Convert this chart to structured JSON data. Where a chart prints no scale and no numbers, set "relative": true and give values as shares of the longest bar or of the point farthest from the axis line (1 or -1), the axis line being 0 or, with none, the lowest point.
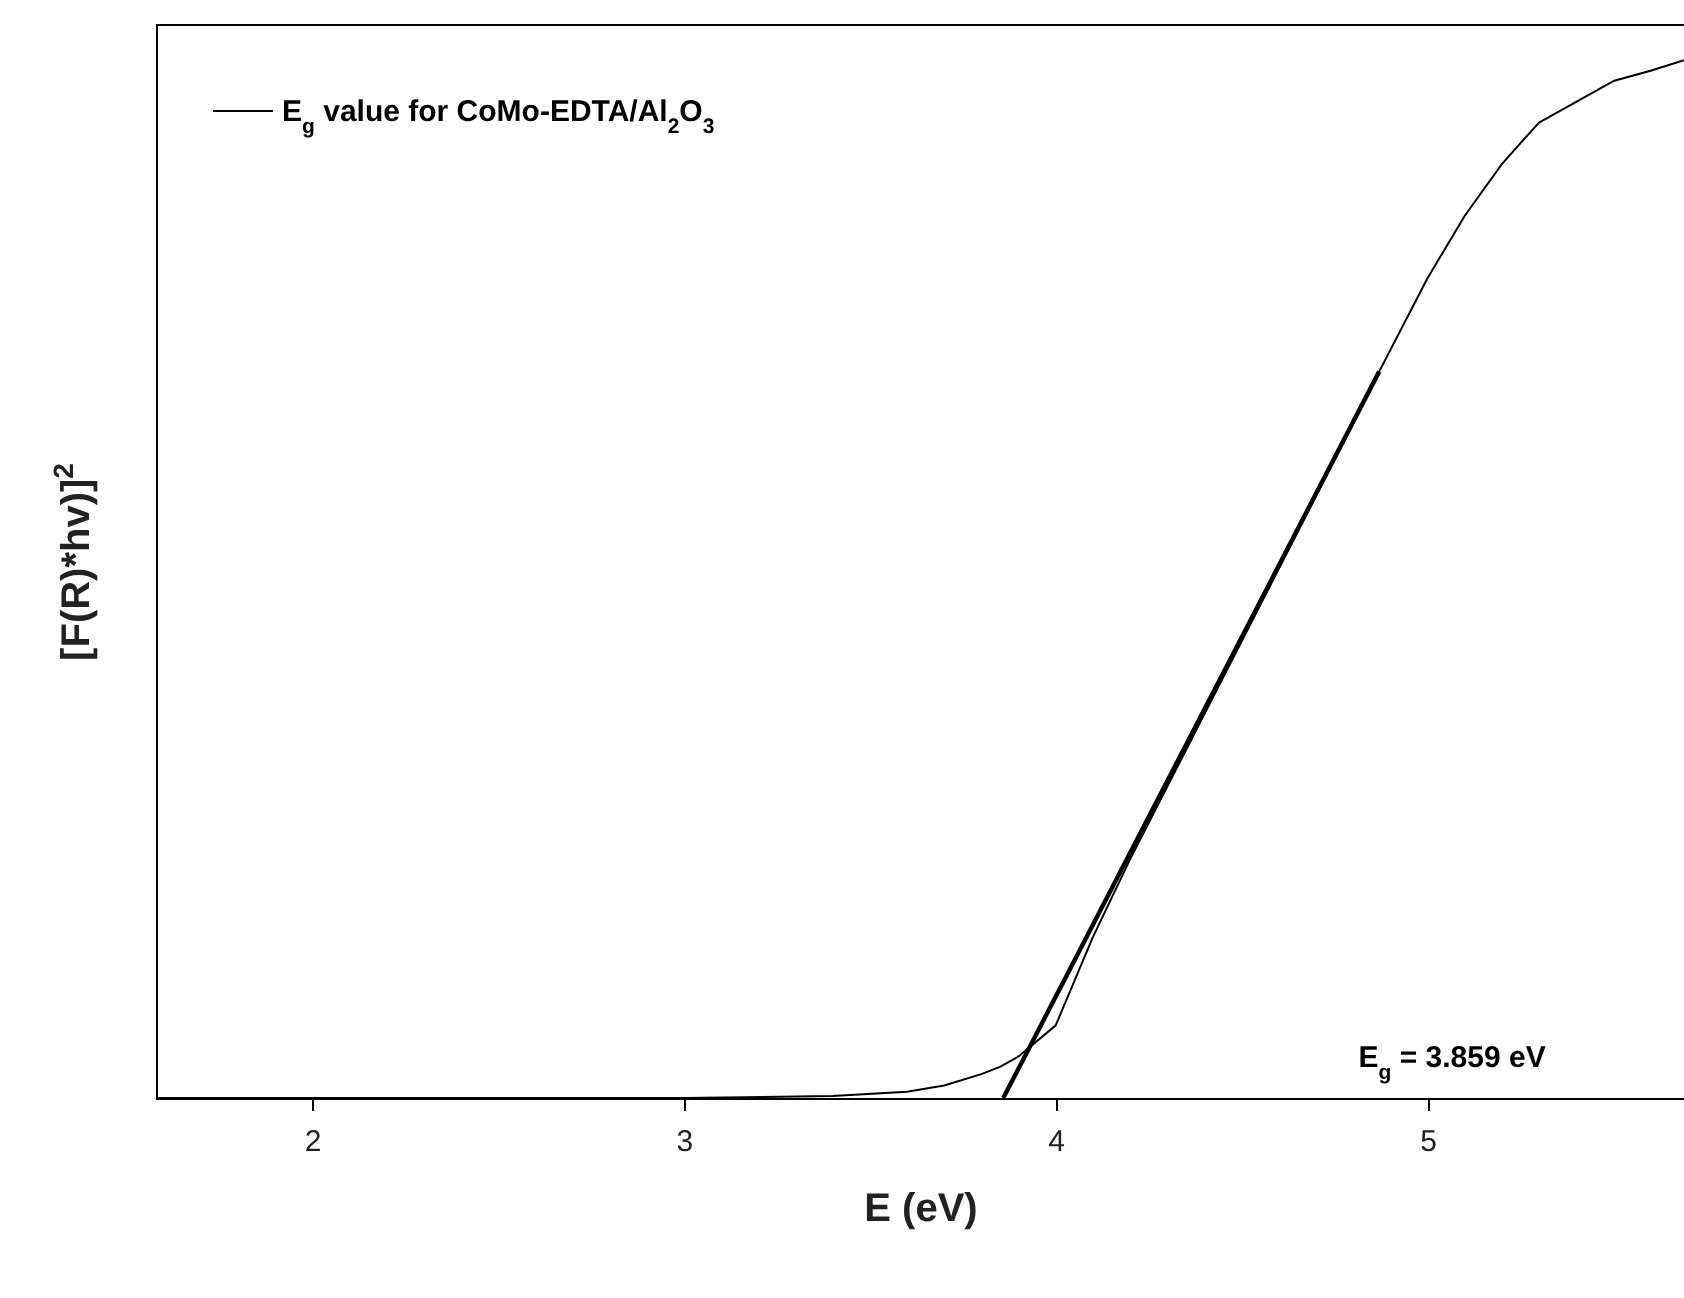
{
  "chart_data": {
    "type": "line",
    "relative": true,
    "xlabel": "E (eV)",
    "ylabel": "[F(R)*hv)]$^{2}$",
    "xlim": [
      1.58,
      5.69
    ],
    "xticks": [
      2,
      3,
      4,
      5
    ],
    "legend": "top left",
    "annotations": [
      "E$_{g}$ = 3.859 eV"
    ],
    "series": [
      {
        "name": "E$_{g}$ value for CoMo-EDTA/Al$_{2}$O$_{3}$",
        "color": "#000000",
        "x": [
          1.58,
          2.5,
          3.0,
          3.4,
          3.6,
          3.7,
          3.8,
          3.85,
          3.9,
          4.0,
          4.1,
          4.2,
          4.4,
          4.6,
          4.8,
          4.87,
          5.0,
          5.1,
          5.2,
          5.3,
          5.4,
          5.5,
          5.6,
          5.69
        ],
        "values": [
          0,
          0,
          0,
          0.002,
          0.006,
          0.012,
          0.023,
          0.03,
          0.04,
          0.07,
          0.155,
          0.23,
          0.37,
          0.51,
          0.65,
          0.7,
          0.79,
          0.85,
          0.9,
          0.94,
          0.96,
          0.98,
          0.99,
          1.0
        ]
      },
      {
        "type": "line",
        "color": "#000000",
        "x": [
          3.859,
          4.87
        ],
        "values": [
          0,
          0.7
        ]
      }
    ]
  }
}
